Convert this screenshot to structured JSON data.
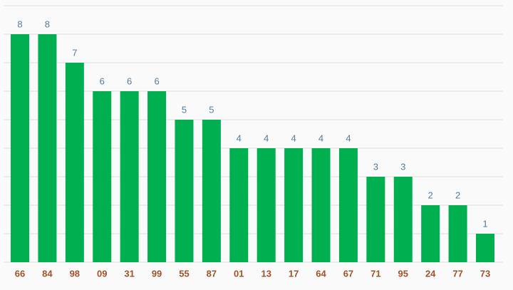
{
  "chart_data": {
    "type": "bar",
    "categories": [
      "66",
      "84",
      "98",
      "09",
      "31",
      "99",
      "55",
      "87",
      "01",
      "13",
      "17",
      "64",
      "67",
      "71",
      "95",
      "24",
      "77",
      "73"
    ],
    "values": [
      8,
      8,
      7,
      6,
      6,
      6,
      5,
      5,
      4,
      4,
      4,
      4,
      4,
      3,
      3,
      2,
      2,
      1
    ],
    "color": "#00b050",
    "ylim": [
      0,
      9
    ],
    "yticks": [
      0,
      1,
      2,
      3,
      4,
      5,
      6,
      7,
      8,
      9
    ],
    "grid": true
  }
}
